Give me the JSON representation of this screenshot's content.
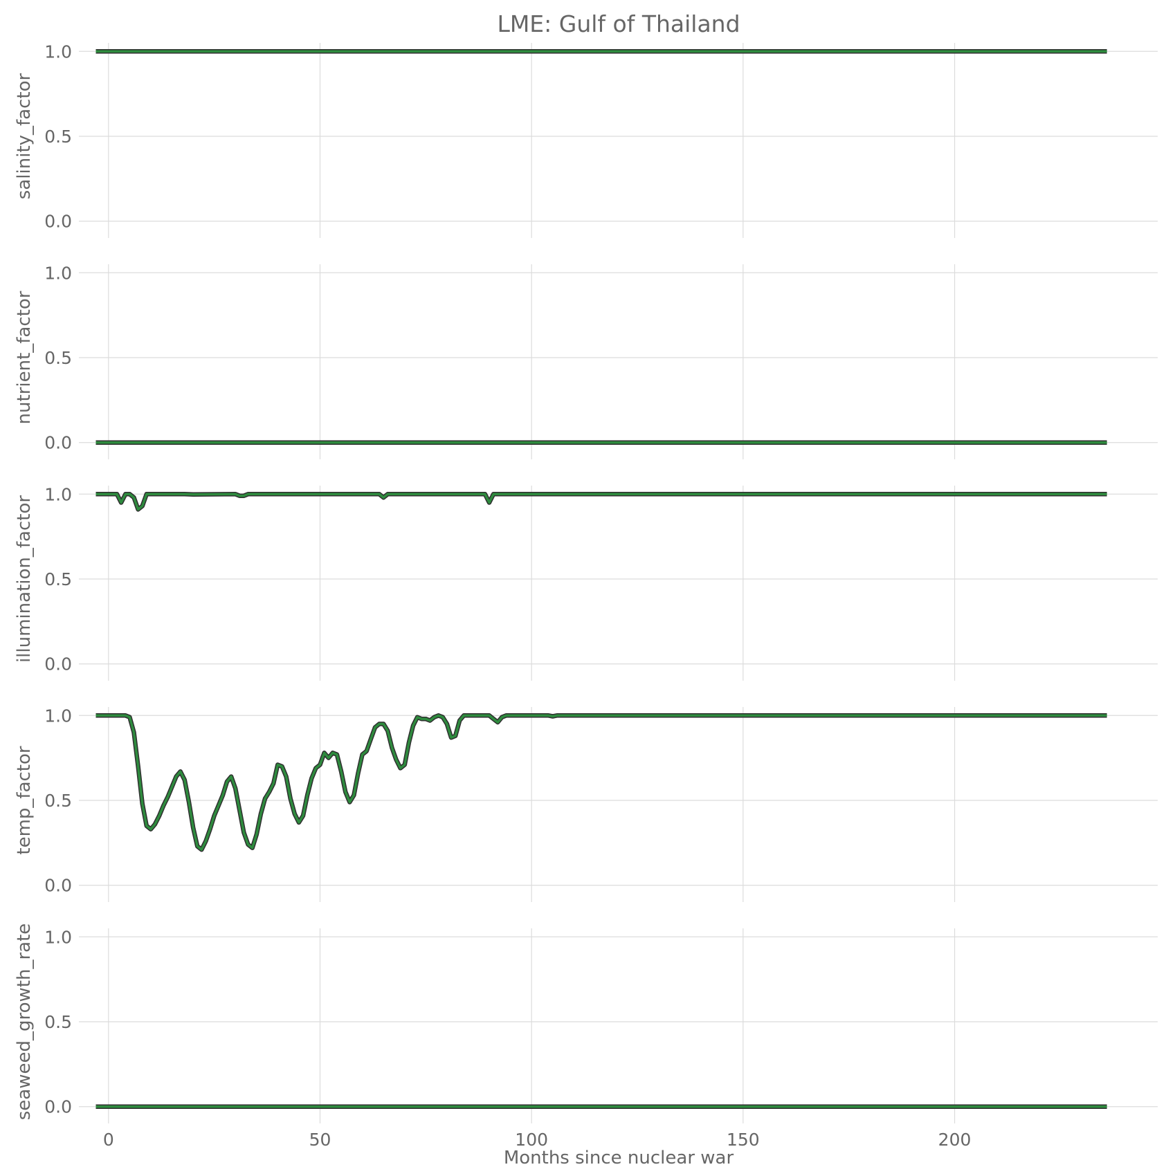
{
  "chart_data": {
    "type": "line",
    "title": "LME: Gulf of Thailand",
    "xlabel": "Months since nuclear war",
    "xlim": [
      -7,
      248
    ],
    "x_ticks": [
      0,
      50,
      100,
      150,
      200
    ],
    "x_tick_labels": [
      "0",
      "50",
      "100",
      "150",
      "200"
    ],
    "line_color": "#2e8b3e",
    "line_edge_color": "#2f2f2f",
    "grid": true,
    "panels": [
      {
        "ylabel": "salinity_factor",
        "ylim": [
          -0.05,
          1.05
        ],
        "y_ticks": [
          0.0,
          0.5,
          1.0
        ],
        "y_tick_labels": [
          "0.0",
          "0.5",
          "1.0"
        ],
        "series": [
          {
            "points": [
              [
                -3,
                1.0
              ],
              [
                236,
                1.0
              ]
            ]
          }
        ]
      },
      {
        "ylabel": "nutrient_factor",
        "ylim": [
          -0.05,
          1.05
        ],
        "y_ticks": [
          0.0,
          0.5,
          1.0
        ],
        "y_tick_labels": [
          "0.0",
          "0.5",
          "1.0"
        ],
        "series": [
          {
            "points": [
              [
                -3,
                0.0
              ],
              [
                236,
                0.0
              ]
            ]
          }
        ]
      },
      {
        "ylabel": "illumination_factor",
        "ylim": [
          -0.05,
          1.05
        ],
        "y_ticks": [
          0.0,
          0.5,
          1.0
        ],
        "y_tick_labels": [
          "0.0",
          "0.5",
          "1.0"
        ],
        "series": [
          {
            "points": [
              [
                -3,
                1.0
              ],
              [
                2,
                1.0
              ],
              [
                3,
                0.95
              ],
              [
                4,
                1.0
              ],
              [
                5,
                1.0
              ],
              [
                6,
                0.98
              ],
              [
                7,
                0.91
              ],
              [
                8,
                0.93
              ],
              [
                9,
                1.0
              ],
              [
                18,
                1.0
              ],
              [
                20,
                0.998
              ],
              [
                30,
                1.0
              ],
              [
                31,
                0.99
              ],
              [
                32,
                0.99
              ],
              [
                33,
                1.0
              ],
              [
                64,
                1.0
              ],
              [
                65,
                0.98
              ],
              [
                66,
                1.0
              ],
              [
                89,
                1.0
              ],
              [
                90,
                0.95
              ],
              [
                91,
                1.0
              ],
              [
                236,
                1.0
              ]
            ]
          }
        ]
      },
      {
        "ylabel": "temp_factor",
        "ylim": [
          -0.05,
          1.05
        ],
        "y_ticks": [
          0.0,
          0.5,
          1.0
        ],
        "y_tick_labels": [
          "0.0",
          "0.5",
          "1.0"
        ],
        "series": [
          {
            "points": [
              [
                -3,
                1.0
              ],
              [
                4,
                1.0
              ],
              [
                5,
                0.99
              ],
              [
                6,
                0.9
              ],
              [
                7,
                0.7
              ],
              [
                8,
                0.48
              ],
              [
                9,
                0.35
              ],
              [
                10,
                0.33
              ],
              [
                11,
                0.36
              ],
              [
                12,
                0.41
              ],
              [
                13,
                0.47
              ],
              [
                14,
                0.52
              ],
              [
                15,
                0.58
              ],
              [
                16,
                0.64
              ],
              [
                17,
                0.67
              ],
              [
                18,
                0.62
              ],
              [
                19,
                0.49
              ],
              [
                20,
                0.34
              ],
              [
                21,
                0.23
              ],
              [
                22,
                0.21
              ],
              [
                23,
                0.26
              ],
              [
                24,
                0.33
              ],
              [
                25,
                0.41
              ],
              [
                26,
                0.47
              ],
              [
                27,
                0.53
              ],
              [
                28,
                0.61
              ],
              [
                29,
                0.64
              ],
              [
                30,
                0.57
              ],
              [
                31,
                0.44
              ],
              [
                32,
                0.31
              ],
              [
                33,
                0.24
              ],
              [
                34,
                0.22
              ],
              [
                35,
                0.3
              ],
              [
                36,
                0.42
              ],
              [
                37,
                0.51
              ],
              [
                38,
                0.55
              ],
              [
                39,
                0.6
              ],
              [
                40,
                0.71
              ],
              [
                41,
                0.7
              ],
              [
                42,
                0.64
              ],
              [
                43,
                0.51
              ],
              [
                44,
                0.42
              ],
              [
                45,
                0.37
              ],
              [
                46,
                0.41
              ],
              [
                47,
                0.53
              ],
              [
                48,
                0.63
              ],
              [
                49,
                0.69
              ],
              [
                50,
                0.71
              ],
              [
                51,
                0.78
              ],
              [
                52,
                0.75
              ],
              [
                53,
                0.78
              ],
              [
                54,
                0.77
              ],
              [
                55,
                0.67
              ],
              [
                56,
                0.55
              ],
              [
                57,
                0.49
              ],
              [
                58,
                0.53
              ],
              [
                59,
                0.66
              ],
              [
                60,
                0.77
              ],
              [
                61,
                0.79
              ],
              [
                62,
                0.86
              ],
              [
                63,
                0.93
              ],
              [
                64,
                0.95
              ],
              [
                65,
                0.95
              ],
              [
                66,
                0.91
              ],
              [
                67,
                0.81
              ],
              [
                68,
                0.74
              ],
              [
                69,
                0.69
              ],
              [
                70,
                0.71
              ],
              [
                71,
                0.84
              ],
              [
                72,
                0.94
              ],
              [
                73,
                0.99
              ],
              [
                74,
                0.98
              ],
              [
                75,
                0.98
              ],
              [
                76,
                0.97
              ],
              [
                77,
                0.99
              ],
              [
                78,
                1.0
              ],
              [
                79,
                0.99
              ],
              [
                80,
                0.95
              ],
              [
                81,
                0.87
              ],
              [
                82,
                0.88
              ],
              [
                83,
                0.97
              ],
              [
                84,
                1.0
              ],
              [
                90,
                1.0
              ],
              [
                91,
                0.98
              ],
              [
                92,
                0.96
              ],
              [
                93,
                0.99
              ],
              [
                94,
                1.0
              ],
              [
                104,
                1.0
              ],
              [
                105,
                0.995
              ],
              [
                106,
                1.0
              ],
              [
                236,
                1.0
              ]
            ]
          }
        ]
      },
      {
        "ylabel": "seaweed_growth_rate",
        "ylim": [
          -0.05,
          1.05
        ],
        "y_ticks": [
          0.0,
          0.5,
          1.0
        ],
        "y_tick_labels": [
          "0.0",
          "0.5",
          "1.0"
        ],
        "series": [
          {
            "points": [
              [
                -3,
                0.0
              ],
              [
                236,
                0.0
              ]
            ]
          }
        ]
      }
    ]
  }
}
